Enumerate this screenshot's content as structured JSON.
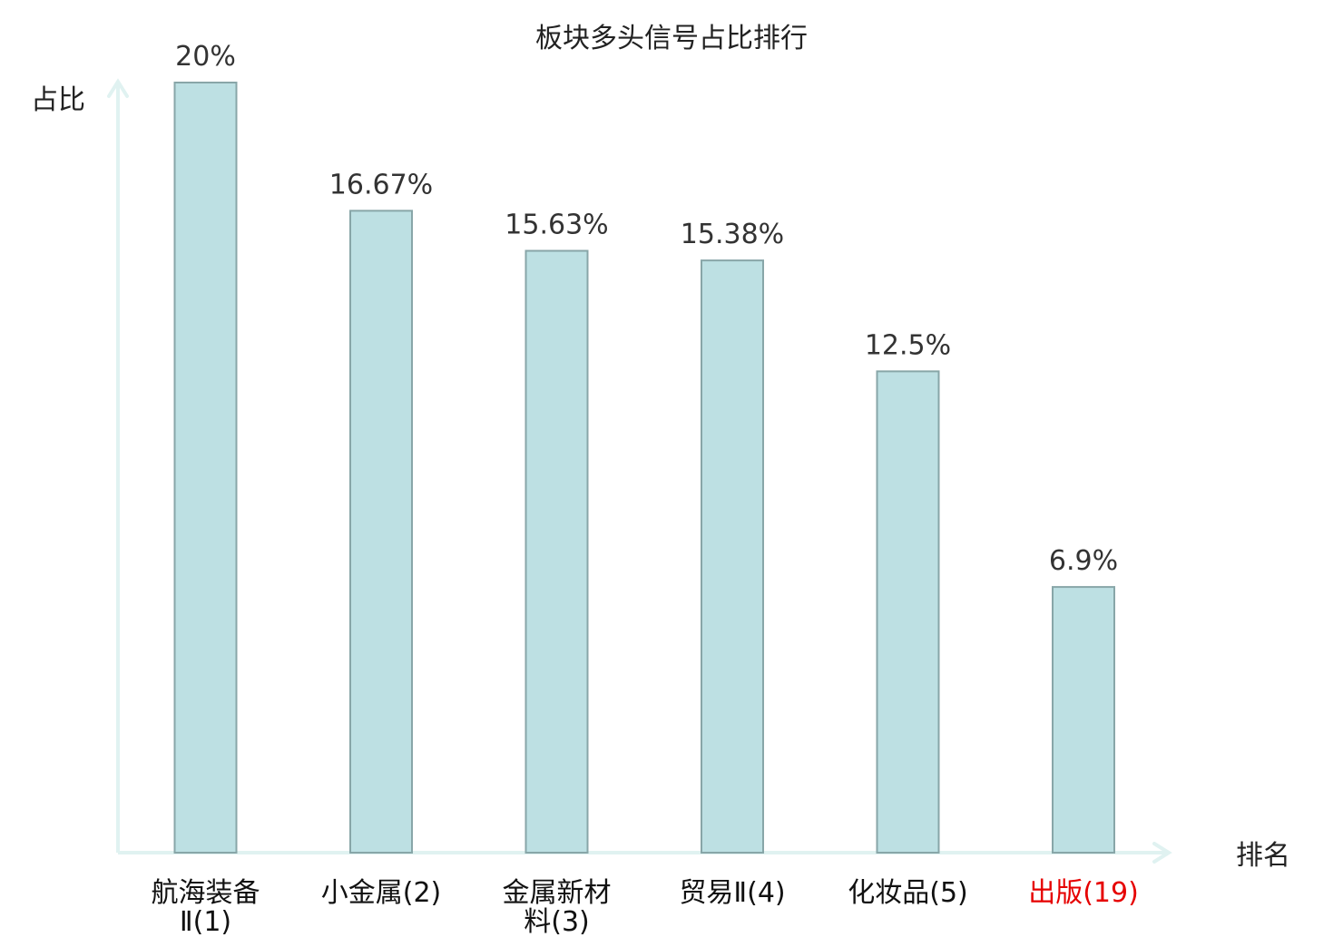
{
  "chart_data": {
    "type": "bar",
    "title": "板块多头信号占比排行",
    "ylabel": "占比",
    "xlabel": "排名",
    "categories": [
      {
        "lines": [
          "航海装备",
          "Ⅱ(1)"
        ],
        "highlight": false
      },
      {
        "lines": [
          "小金属(2)"
        ],
        "highlight": false
      },
      {
        "lines": [
          "金属新材",
          "料(3)"
        ],
        "highlight": false
      },
      {
        "lines": [
          "贸易Ⅱ(4)"
        ],
        "highlight": false
      },
      {
        "lines": [
          "化妆品(5)"
        ],
        "highlight": false
      },
      {
        "lines": [
          "出版(19)"
        ],
        "highlight": true
      }
    ],
    "values": [
      20,
      16.67,
      15.63,
      15.38,
      12.5,
      6.9
    ],
    "value_labels": [
      "20%",
      "16.67%",
      "15.63%",
      "15.38%",
      "12.5%",
      "6.9%"
    ],
    "ylim": [
      0,
      20
    ],
    "grid": false,
    "colors": {
      "bar_fill": "#bde0e3",
      "bar_stroke": "#88a6a8",
      "axis": "#e0f2f1",
      "text": "#333333",
      "highlight_text": "#e60000"
    }
  }
}
